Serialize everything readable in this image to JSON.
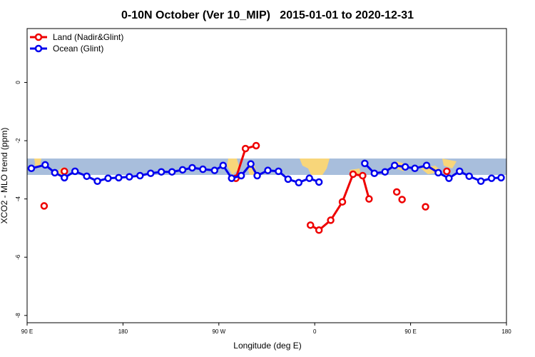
{
  "chart_data": {
    "type": "line",
    "title": "0-10N October (Ver 10_MIP)   2015-01-01 to 2020-12-31",
    "x_label": "Longitude (deg E)",
    "y_label": "XCO2 - MLO trend (ppm)",
    "xlim": [
      90,
      540
    ],
    "xticks": [
      {
        "value": 90,
        "label": "90 E"
      },
      {
        "value": 180,
        "label": "180"
      },
      {
        "value": 270,
        "label": "90 W"
      },
      {
        "value": 360,
        "label": "0"
      },
      {
        "value": 450,
        "label": "90 E"
      },
      {
        "value": 540,
        "label": "180"
      }
    ],
    "ylim": [
      -8.25,
      1.85
    ],
    "yticks": [
      0,
      -2,
      -4,
      -6,
      -8
    ],
    "legend": "upper left",
    "series": [
      {
        "name": "Land (Nadir&Glint)",
        "color": "#ee0000",
        "x": [
          106,
          null,
          125,
          null,
          286,
          295,
          305,
          null,
          356,
          364,
          375,
          386,
          396,
          405,
          411,
          null,
          437,
          null,
          442,
          null,
          464,
          null,
          484
        ],
        "values": [
          -4.24,
          null,
          -3.05,
          null,
          -3.29,
          -2.27,
          -2.17,
          null,
          -4.9,
          -5.07,
          -4.73,
          -4.1,
          -3.15,
          -3.2,
          -4.0,
          null,
          -3.76,
          null,
          -4.02,
          null,
          -4.27,
          null,
          -3.05
        ]
      },
      {
        "name": "Ocean (Glint)",
        "color": "#0000ee",
        "x": [
          94,
          107,
          116,
          125,
          135,
          146,
          156,
          166,
          176,
          186,
          196,
          206,
          216,
          226,
          236,
          245,
          255,
          266,
          274,
          282,
          291,
          300,
          306,
          316,
          326,
          335,
          345,
          355,
          364,
          null,
          407,
          416,
          426,
          435,
          445,
          454,
          465,
          476,
          486,
          496,
          505,
          516,
          526,
          535
        ],
        "values": [
          -2.95,
          -2.83,
          -3.1,
          -3.27,
          -3.05,
          -3.22,
          -3.39,
          -3.29,
          -3.27,
          -3.24,
          -3.2,
          -3.12,
          -3.07,
          -3.07,
          -3.0,
          -2.93,
          -2.98,
          -3.02,
          -2.85,
          -3.29,
          -3.2,
          -2.8,
          -3.2,
          -3.02,
          -3.05,
          -3.32,
          -3.44,
          -3.29,
          -3.42,
          null,
          -2.78,
          -3.12,
          -3.07,
          -2.85,
          -2.9,
          -2.95,
          -2.85,
          -3.1,
          -3.29,
          -3.05,
          -3.22,
          -3.39,
          -3.29,
          -3.27
        ]
      }
    ]
  }
}
